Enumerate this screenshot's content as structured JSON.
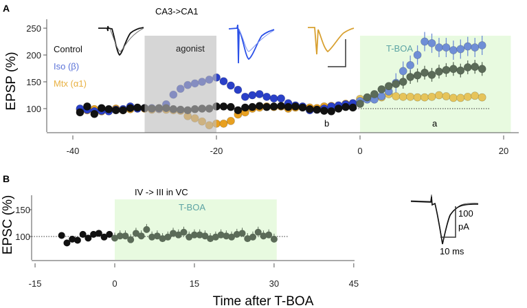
{
  "colors": {
    "control": "#111111",
    "control_post": "#5b6b58",
    "iso": "#2a40c8",
    "iso_post": "#6f8ed6",
    "mtx": "#e8a020",
    "mtx_post": "#e6c45a",
    "tboa_text": "#5ba3a3",
    "agonist_shade": "#c8c8c8",
    "tboa_shade": "#e8fae0"
  },
  "chart_data": [
    {
      "panel": "A",
      "type": "scatter",
      "title": "CA3->CA1",
      "xlabel": "",
      "ylabel": "EPSP (%)",
      "xlim": [
        -44,
        22
      ],
      "ylim": [
        56,
        270
      ],
      "xticks": [
        -40,
        -20,
        0,
        20
      ],
      "yticks": [
        100,
        150,
        200,
        250
      ],
      "baseline": 100,
      "legend": [
        "Control",
        "Iso (β)",
        "Mtx (α1)"
      ],
      "legend_placement": "top-left",
      "shaded": [
        {
          "label": "agonist",
          "x": [
            -30,
            -20
          ]
        },
        {
          "label": "T-BOA",
          "x": [
            0,
            21
          ]
        }
      ],
      "annotations": [
        "b",
        "a"
      ],
      "x": [
        -39,
        -38,
        -37,
        -36,
        -35,
        -34,
        -33,
        -32,
        -31,
        -30,
        -29,
        -28,
        -27,
        -26,
        -25,
        -24,
        -23,
        -22,
        -21,
        -20,
        -19,
        -18,
        -17,
        -16,
        -15,
        -14,
        -13,
        -12,
        -11,
        -10,
        -9,
        -8,
        -7,
        -6,
        -5,
        -4,
        -3,
        -2,
        -1,
        0,
        1,
        2,
        3,
        4,
        5,
        6,
        7,
        8,
        9,
        10,
        11,
        12,
        13,
        14,
        15,
        16,
        17
      ],
      "series": [
        {
          "name": "Mtx (α1)",
          "key": "mtx",
          "values": [
            98,
            97,
            99,
            95,
            98,
            100,
            97,
            99,
            101,
            100,
            98,
            99,
            98,
            97,
            96,
            86,
            82,
            76,
            69,
            72,
            72,
            77,
            89,
            93,
            100,
            102,
            104,
            103,
            104,
            100,
            102,
            103,
            102,
            101,
            104,
            105,
            103,
            109,
            110,
            118,
            119,
            119,
            121,
            127,
            123,
            122,
            122,
            121,
            121,
            122,
            125,
            123,
            120,
            120,
            122,
            124,
            121
          ]
        },
        {
          "name": "Iso (β)",
          "key": "iso",
          "values": [
            100,
            98,
            95,
            96,
            95,
            98,
            99,
            104,
            100,
            101,
            101,
            100,
            108,
            126,
            137,
            144,
            147,
            150,
            154,
            158,
            151,
            143,
            135,
            122,
            125,
            127,
            122,
            119,
            119,
            110,
            106,
            104,
            97,
            98,
            100,
            104,
            106,
            108,
            110,
            114,
            117,
            117,
            123,
            132,
            148,
            170,
            181,
            200,
            225,
            222,
            214,
            214,
            209,
            211,
            216,
            214,
            218
          ]
        },
        {
          "name": "Control",
          "key": "control",
          "values": [
            93,
            104,
            90,
            101,
            99,
            97,
            97,
            101,
            102,
            101,
            100,
            101,
            101,
            99,
            98,
            97,
            99,
            100,
            100,
            104,
            104,
            103,
            97,
            102,
            103,
            105,
            103,
            104,
            105,
            103,
            104,
            102,
            99,
            98,
            96,
            95,
            100,
            103,
            102,
            109,
            121,
            127,
            136,
            142,
            146,
            150,
            159,
            162,
            167,
            163,
            169,
            172,
            174,
            171,
            177,
            178,
            174
          ]
        }
      ]
    },
    {
      "panel": "B",
      "type": "scatter",
      "title": "IV -> III in VC",
      "xlabel": "Time after T-BOA",
      "ylabel": "EPSC (%)",
      "xlim": [
        -16,
        45
      ],
      "ylim": [
        56,
        178
      ],
      "xticks": [
        -15,
        0,
        15,
        30,
        45
      ],
      "yticks": [
        100,
        150
      ],
      "baseline": 100,
      "shaded": [
        {
          "label": "T-BOA",
          "x": [
            0,
            30.5
          ]
        }
      ],
      "scale_bar": {
        "y_label_1": "100",
        "y_label_2": "pA",
        "x_label": "10 ms"
      },
      "x": [
        -10,
        -9,
        -8,
        -7,
        -6,
        -5,
        -4,
        -3,
        -2,
        -1,
        0,
        1,
        2,
        3,
        4,
        5,
        6,
        7,
        8,
        9,
        10,
        11,
        12,
        13,
        14,
        15,
        16,
        17,
        18,
        19,
        20,
        21,
        22,
        23,
        24,
        25,
        26,
        27,
        28,
        29,
        30
      ],
      "values": [
        102,
        88,
        95,
        93,
        104,
        97,
        104,
        106,
        99,
        104,
        97,
        101,
        101,
        94,
        106,
        101,
        113,
        99,
        101,
        96,
        99,
        106,
        103,
        108,
        99,
        103,
        103,
        101,
        96,
        99,
        103,
        101,
        99,
        104,
        106,
        96,
        99,
        108,
        101,
        103,
        95
      ]
    }
  ],
  "labels": {
    "panel_a": "A",
    "panel_b": "B",
    "agonist": "agonist",
    "tboa": "T-BOA",
    "b": "b",
    "a": "a",
    "legend_control": "Control",
    "legend_iso": "Iso (β)",
    "legend_mtx": "Mtx (α1)",
    "title_a": "CA3->CA1",
    "title_b": "IV -> III in VC",
    "ylabel_a": "EPSP (%)",
    "ylabel_b": "EPSC (%)",
    "xlabel": "Time after T-BOA",
    "a_xticks": [
      "-40",
      "-20",
      "0",
      "20"
    ],
    "a_yticks": [
      "100",
      "150",
      "200",
      "250"
    ],
    "b_xticks": [
      "-15",
      "0",
      "15",
      "30",
      "45"
    ],
    "b_yticks": [
      "100",
      "150"
    ],
    "scale_100": "100",
    "scale_pa": "pA",
    "scale_ms": "10 ms"
  }
}
